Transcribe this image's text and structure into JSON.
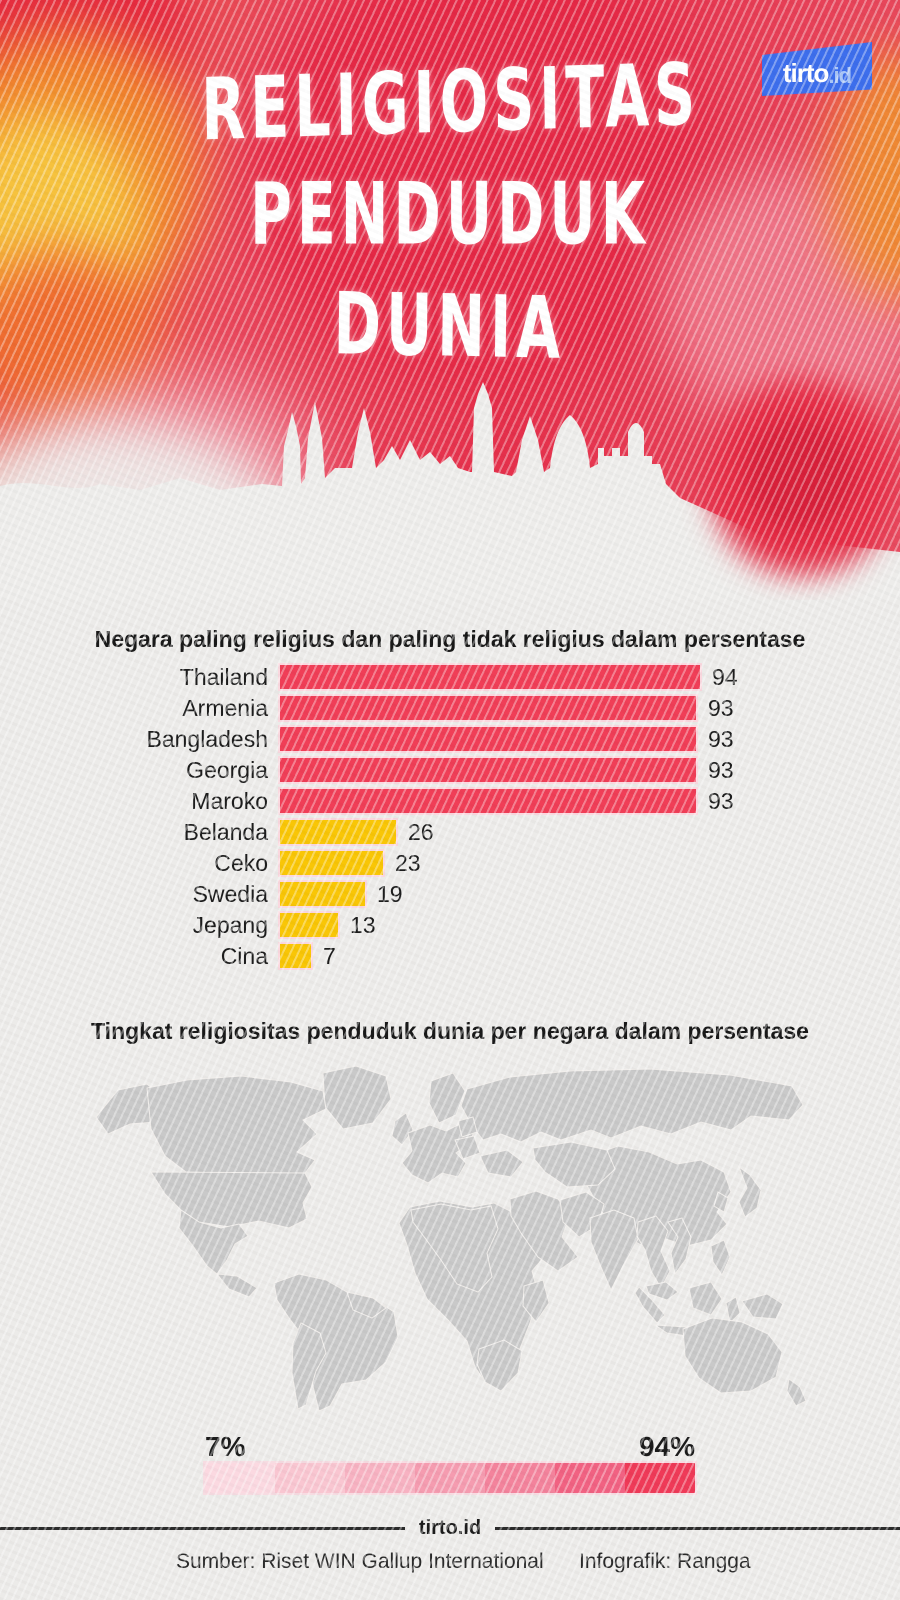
{
  "logo": {
    "text": "tirto",
    "suffix": ".id",
    "color": "#3D6EEC"
  },
  "header": {
    "line1": "Religiositas",
    "line2": "Penduduk",
    "line3": "Dunia"
  },
  "chart_data": [
    {
      "type": "bar",
      "orientation": "horizontal",
      "title": "Negara paling religius dan paling tidak religius dalam persentase",
      "categories": [
        "Thailand",
        "Armenia",
        "Bangladesh",
        "Georgia",
        "Maroko",
        "Belanda",
        "Ceko",
        "Swedia",
        "Jepang",
        "Cina"
      ],
      "values": [
        94,
        93,
        93,
        93,
        93,
        26,
        23,
        19,
        13,
        7
      ],
      "bar_colors": [
        "#F03E57",
        "#F03E57",
        "#F03E57",
        "#F03E57",
        "#F03E57",
        "#F9C606",
        "#F9C606",
        "#F9C606",
        "#F9C606",
        "#F9C606"
      ],
      "group_colors": {
        "paling_religius": "#F03E57",
        "paling_tidak_religius": "#F9C606"
      },
      "xlim": [
        0,
        100
      ],
      "value_labels_shown": true,
      "grid": false,
      "legend": "none"
    },
    {
      "type": "heatmap",
      "subtype": "choropleth-world-map",
      "title": "Tingkat religiositas penduduk dunia per negara dalam persentase",
      "colorbar": {
        "min": 7,
        "max": 94,
        "unit": "%",
        "min_label": "7%",
        "max_label": "94%",
        "colors": [
          "#FBD9E1",
          "#F9C6D1",
          "#F7B2C2",
          "#F59CB0",
          "#F3839C",
          "#F16282",
          "#EF3A58"
        ],
        "position": "bottom"
      },
      "no_data_color": "#C9C9C9"
    }
  ],
  "map_section": {
    "regions": [
      {
        "id": "greenland",
        "color": "#C9C9C9"
      },
      {
        "id": "scandinavia",
        "color": "#C9C9C9"
      },
      {
        "id": "uk",
        "color": "#C9C9C9"
      },
      {
        "id": "europe",
        "color": "#C9C9C9"
      },
      {
        "id": "africa",
        "color": "#C9C9C9"
      },
      {
        "id": "middle-east",
        "color": "#CDCDCD"
      },
      {
        "id": "china",
        "color": "#C9C9C9"
      },
      {
        "id": "japan",
        "color": "#C9C9C9"
      },
      {
        "id": "korea",
        "color": "#C9C9C9"
      },
      {
        "id": "alaska",
        "color": "#F2607A"
      },
      {
        "id": "canada",
        "color": "#F8B0C2"
      },
      {
        "id": "usa",
        "color": "#F3839C"
      },
      {
        "id": "mexico",
        "color": "#EF4560"
      },
      {
        "id": "central-america",
        "color": "#EF4560"
      },
      {
        "id": "south-america",
        "color": "#EF4560"
      },
      {
        "id": "guyanas",
        "color": "#C9C9C9"
      },
      {
        "id": "bolivia-chile",
        "color": "#C9C9C9"
      },
      {
        "id": "russia",
        "color": "#F4566C"
      },
      {
        "id": "baltics",
        "color": "#F6A3B6"
      },
      {
        "id": "poland",
        "color": "#E73850"
      },
      {
        "id": "ukraine",
        "color": "#F4566C"
      },
      {
        "id": "kazakhstan",
        "color": "#F58CA1"
      },
      {
        "id": "north-africa",
        "color": "#EF3A55"
      },
      {
        "id": "kenya",
        "color": "#EF3A55"
      },
      {
        "id": "south-africa",
        "color": "#EF3A55"
      },
      {
        "id": "afghanistan-pakistan",
        "color": "#EF3A55"
      },
      {
        "id": "india",
        "color": "#F2607A"
      },
      {
        "id": "myanmar-thailand",
        "color": "#EF3A55"
      },
      {
        "id": "vietnam",
        "color": "#F2607A"
      },
      {
        "id": "malaysia",
        "color": "#EF3A55"
      },
      {
        "id": "sumatra",
        "color": "#EF3A55"
      },
      {
        "id": "borneo",
        "color": "#EF3A55"
      },
      {
        "id": "java",
        "color": "#EF3A55"
      },
      {
        "id": "sulawesi",
        "color": "#EF3A55"
      },
      {
        "id": "philippines",
        "color": "#F3839C"
      },
      {
        "id": "papua",
        "color": "#EF4560"
      },
      {
        "id": "australia",
        "color": "#F7B8C9"
      },
      {
        "id": "new-zealand",
        "color": "#F6A3B6"
      }
    ]
  },
  "footer": {
    "brand": "tirto.id",
    "source": "Sumber: Riset WIN Gallup International",
    "credit": "Infografik: Rangga"
  }
}
